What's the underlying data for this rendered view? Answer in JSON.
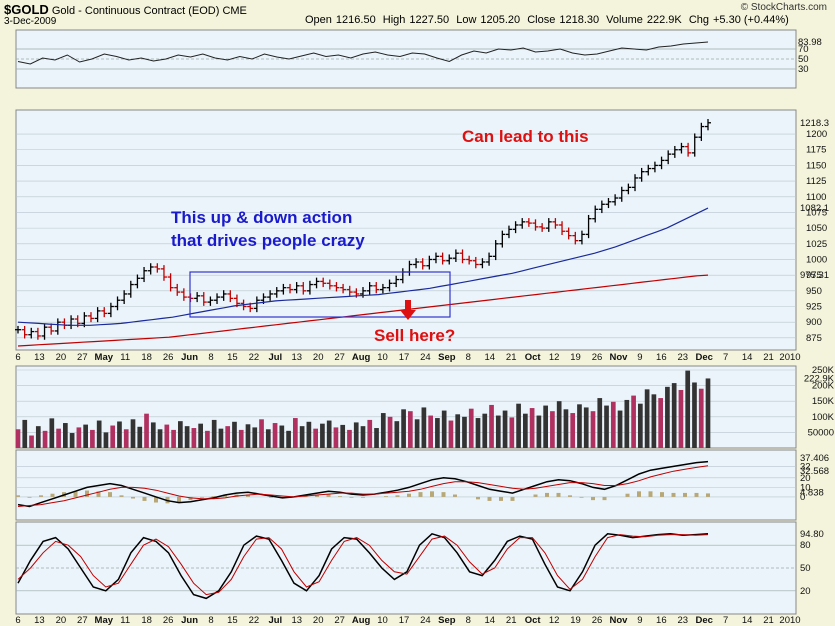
{
  "header": {
    "symbol": "$GOLD",
    "name": "Gold - Continuous Contract (EOD)",
    "exchange": "CME",
    "date": "3-Dec-2009",
    "brand": "© StockCharts.com",
    "open_label": "Open",
    "open": "1216.50",
    "high_label": "High",
    "high": "1227.50",
    "low_label": "Low",
    "low": "1205.20",
    "close_label": "Close",
    "close": "1218.30",
    "volume_label": "Volume",
    "volume": "222.9K",
    "chg_label": "Chg",
    "chg": "+5.30 (+0.44%)"
  },
  "annotations": {
    "crazy_line1": "This up & down action",
    "crazy_line2": "that drives people crazy",
    "lead": "Can lead to this",
    "sell": "Sell here?"
  },
  "colors": {
    "panel_bg": "#eaf4fa",
    "grid": "#b8c4cc",
    "bar_up": "#000000",
    "bar_down": "#c00000",
    "ma_short": "#1a2a9a",
    "ma_long": "#c00000",
    "volume_down": "#b03060",
    "volume_up": "#333333",
    "annotation_blue": "#1a1acc",
    "annotation_red": "#dd1111",
    "box": "#3333cc"
  },
  "chart_data": [
    {
      "type": "line",
      "panel": "rsi",
      "ylim": [
        0,
        100
      ],
      "ticks": [
        "30",
        "50",
        "70"
      ],
      "tick_label_fixed": [
        "30",
        "50",
        "70"
      ],
      "last_value_label": "83.98",
      "values": [
        45,
        40,
        52,
        48,
        58,
        44,
        50,
        60,
        55,
        48,
        52,
        46,
        50,
        58,
        54,
        60,
        52,
        48,
        55,
        50,
        60,
        54,
        50,
        56,
        62,
        55,
        58,
        52,
        60,
        64,
        58,
        55,
        62,
        60,
        52,
        45,
        58,
        66,
        62,
        70,
        68,
        72,
        64,
        66,
        70,
        62,
        58,
        60,
        66,
        72,
        70,
        68,
        74,
        76,
        80,
        82,
        84
      ]
    },
    {
      "type": "bar",
      "panel": "price",
      "ylim": [
        862,
        1232
      ],
      "y_ticks": [
        875,
        900,
        925,
        950,
        975,
        1000,
        1025,
        1050,
        1075,
        1100,
        1125,
        1150,
        1175,
        1200
      ],
      "last_labels": {
        "close": "1218.3",
        "ma50": "1082.1",
        "ma200": "975.31"
      },
      "x_tick_labels": [
        "6",
        "13",
        "20",
        "27",
        "May",
        "11",
        "18",
        "26",
        "Jun",
        "8",
        "15",
        "22",
        "Jul",
        "13",
        "20",
        "27",
        "Aug",
        "10",
        "17",
        "24",
        "Sep",
        "8",
        "14",
        "21",
        "Oct",
        "12",
        "19",
        "26",
        "Nov",
        "9",
        "16",
        "23",
        "Dec",
        "7",
        "14",
        "21",
        "2010"
      ],
      "close": [
        888,
        880,
        885,
        878,
        892,
        886,
        900,
        895,
        905,
        898,
        910,
        906,
        918,
        914,
        925,
        935,
        945,
        960,
        970,
        982,
        988,
        985,
        972,
        955,
        948,
        940,
        938,
        942,
        932,
        935,
        940,
        945,
        938,
        930,
        925,
        922,
        935,
        940,
        945,
        950,
        955,
        952,
        958,
        950,
        960,
        965,
        962,
        958,
        955,
        952,
        948,
        945,
        950,
        958,
        952,
        955,
        962,
        968,
        980,
        992,
        996,
        990,
        1000,
        1005,
        998,
        1002,
        1010,
        1000,
        998,
        992,
        996,
        1005,
        1025,
        1040,
        1048,
        1055,
        1060,
        1058,
        1052,
        1050,
        1060,
        1055,
        1045,
        1038,
        1030,
        1040,
        1065,
        1080,
        1088,
        1092,
        1098,
        1110,
        1115,
        1130,
        1140,
        1145,
        1150,
        1158,
        1168,
        1175,
        1180,
        1170,
        1195,
        1212,
        1218
      ],
      "ma50": [
        900,
        899,
        898,
        897,
        896,
        895,
        895,
        895,
        896,
        897,
        898,
        900,
        902,
        904,
        906,
        908,
        911,
        914,
        917,
        920,
        923,
        926,
        928,
        930,
        932,
        934,
        935,
        936,
        937,
        938,
        939,
        940,
        941,
        942,
        943,
        944,
        946,
        948,
        950,
        952,
        954,
        957,
        960,
        963,
        966,
        969,
        972,
        975,
        978,
        982,
        986,
        990,
        994,
        998,
        1002,
        1006,
        1010,
        1015,
        1020,
        1026,
        1032,
        1038,
        1044,
        1050,
        1058,
        1066,
        1074,
        1082
      ],
      "ma200": [
        862,
        863,
        864,
        865,
        866,
        867,
        868,
        869,
        870,
        871,
        872,
        873,
        874,
        875,
        876,
        878,
        880,
        882,
        884,
        886,
        888,
        890,
        892,
        894,
        896,
        898,
        900,
        902,
        904,
        906,
        908,
        910,
        912,
        914,
        916,
        918,
        920,
        922,
        924,
        926,
        928,
        930,
        932,
        934,
        936,
        938,
        940,
        942,
        944,
        946,
        948,
        950,
        952,
        954,
        956,
        958,
        960,
        962,
        964,
        966,
        968,
        970,
        972,
        974,
        975
      ]
    },
    {
      "type": "bar",
      "panel": "volume",
      "ylim": [
        0,
        250000
      ],
      "y_ticks": [
        "50000",
        "100K",
        "150K",
        "200K",
        "250K"
      ],
      "last_value_label": "222.9K",
      "values": [
        60000,
        90000,
        40000,
        70000,
        55000,
        95000,
        62000,
        80000,
        48000,
        66000,
        75000,
        58000,
        88000,
        50000,
        72000,
        85000,
        60000,
        92000,
        68000,
        110000,
        82000,
        60000,
        75000,
        58000,
        86000,
        70000,
        64000,
        78000,
        55000,
        90000,
        62000,
        70000,
        84000,
        58000,
        76000,
        66000,
        92000,
        60000,
        80000,
        72000,
        55000,
        96000,
        70000,
        84000,
        62000,
        78000,
        88000,
        66000,
        74000,
        58000,
        82000,
        70000,
        90000,
        64000,
        112000,
        100000,
        86000,
        124000,
        118000,
        92000,
        130000,
        104000,
        96000,
        120000,
        88000,
        108000,
        100000,
        126000,
        96000,
        110000,
        138000,
        104000,
        120000,
        98000,
        142000,
        110000,
        128000,
        104000,
        136000,
        118000,
        150000,
        124000,
        112000,
        140000,
        130000,
        118000,
        160000,
        136000,
        148000,
        120000,
        154000,
        168000,
        142000,
        188000,
        172000,
        160000,
        196000,
        208000,
        186000,
        248000,
        210000,
        190000,
        222900
      ],
      "down_days": [
        0,
        2,
        4,
        6,
        9,
        11,
        14,
        16,
        19,
        22,
        23,
        26,
        28,
        31,
        33,
        36,
        38,
        41,
        44,
        47,
        49,
        52,
        55,
        58,
        61,
        64,
        67,
        70,
        73,
        76,
        79,
        82,
        85,
        88,
        91,
        95,
        98,
        101
      ]
    },
    {
      "type": "line",
      "panel": "macd",
      "ylim": [
        -20,
        45
      ],
      "y_ticks": [
        "0",
        "10",
        "20",
        "32"
      ],
      "last_labels": {
        "macd": "37.406",
        "signal": "32.568",
        "hist": "4.838"
      },
      "macd": [
        -8,
        -10,
        -6,
        -2,
        2,
        6,
        10,
        12,
        14,
        12,
        8,
        4,
        0,
        -4,
        -6,
        -5,
        -3,
        -1,
        2,
        4,
        5,
        3,
        1,
        -1,
        0,
        2,
        4,
        6,
        5,
        3,
        2,
        3,
        5,
        7,
        10,
        14,
        18,
        20,
        19,
        16,
        12,
        8,
        6,
        4,
        8,
        12,
        16,
        18,
        17,
        14,
        10,
        8,
        12,
        18,
        24,
        28,
        30,
        32,
        34,
        36,
        37
      ],
      "signal": [
        -10,
        -9,
        -8,
        -6,
        -4,
        -1,
        2,
        5,
        8,
        10,
        10,
        9,
        7,
        4,
        1,
        -1,
        -2,
        -2,
        -1,
        1,
        2,
        3,
        2,
        1,
        0,
        1,
        2,
        3,
        4,
        4,
        3,
        3,
        4,
        5,
        6,
        8,
        11,
        14,
        16,
        16,
        15,
        13,
        11,
        9,
        8,
        9,
        11,
        13,
        15,
        15,
        14,
        12,
        12,
        14,
        17,
        21,
        24,
        27,
        29,
        31,
        32.6
      ]
    },
    {
      "type": "line",
      "panel": "stochastic",
      "ylim": [
        0,
        100
      ],
      "y_ticks": [
        "20",
        "50",
        "80"
      ],
      "last_value_label": "94.80",
      "k": [
        30,
        60,
        85,
        90,
        75,
        50,
        25,
        20,
        35,
        70,
        90,
        85,
        70,
        40,
        15,
        10,
        20,
        45,
        80,
        92,
        88,
        60,
        30,
        20,
        40,
        75,
        90,
        88,
        70,
        50,
        35,
        45,
        80,
        95,
        90,
        70,
        45,
        40,
        60,
        85,
        92,
        88,
        55,
        25,
        20,
        45,
        80,
        95,
        93,
        90,
        92,
        94,
        95,
        93,
        94,
        95
      ],
      "d": [
        35,
        50,
        70,
        85,
        80,
        65,
        40,
        25,
        30,
        55,
        80,
        88,
        78,
        55,
        30,
        15,
        18,
        35,
        65,
        88,
        90,
        75,
        45,
        25,
        32,
        60,
        85,
        90,
        80,
        60,
        45,
        42,
        65,
        88,
        92,
        80,
        58,
        42,
        50,
        75,
        90,
        90,
        70,
        40,
        22,
        35,
        65,
        90,
        94,
        92,
        91,
        93,
        94,
        94,
        93,
        94
      ]
    }
  ]
}
